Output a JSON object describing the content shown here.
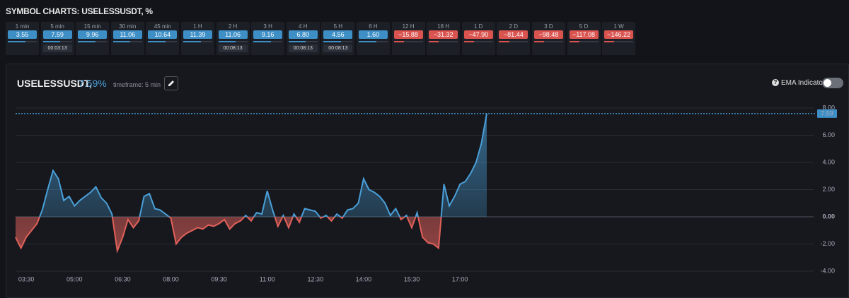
{
  "header": {
    "title": "SYMBOL CHARTS: USELESSUSDT, %"
  },
  "tiles": [
    {
      "label": "1 min",
      "value": "3.55",
      "tone": "up"
    },
    {
      "label": "5 min",
      "value": "7.59",
      "tone": "up",
      "timer": "00:03:13"
    },
    {
      "label": "15 min",
      "value": "9.96",
      "tone": "up"
    },
    {
      "label": "30 min",
      "value": "11.06",
      "tone": "up"
    },
    {
      "label": "45 min",
      "value": "10.64",
      "tone": "up"
    },
    {
      "label": "1 H",
      "value": "11.39",
      "tone": "up"
    },
    {
      "label": "2 H",
      "value": "11.06",
      "tone": "up",
      "timer": "00:08:13"
    },
    {
      "label": "3 H",
      "value": "9.16",
      "tone": "up"
    },
    {
      "label": "4 H",
      "value": "6.80",
      "tone": "up",
      "timer": "00:08:13"
    },
    {
      "label": "5 H",
      "value": "4.56",
      "tone": "up",
      "timer": "00:08:13"
    },
    {
      "label": "6 H",
      "value": "1.60",
      "tone": "up"
    },
    {
      "label": "12 H",
      "value": "−15.88",
      "tone": "down"
    },
    {
      "label": "18 H",
      "value": "−31.32",
      "tone": "down"
    },
    {
      "label": "1 D",
      "value": "−47.90",
      "tone": "down"
    },
    {
      "label": "2 D",
      "value": "−81.44",
      "tone": "down"
    },
    {
      "label": "3 D",
      "value": "−98.48",
      "tone": "down"
    },
    {
      "label": "5 D",
      "value": "−117.08",
      "tone": "down"
    },
    {
      "label": "1 W",
      "value": "−146.22",
      "tone": "down"
    }
  ],
  "panel": {
    "symbol": "USELESSUSDT,",
    "percent": "7.59%",
    "timeframe": "timeframe: 5 min",
    "ema_label": "EMA Indicator"
  },
  "chart_data": {
    "type": "area",
    "current_value": 7.59,
    "up_color": "#4a9fd8",
    "down_color": "#e0605a",
    "categories": [
      null,
      null,
      "03:30",
      null,
      null,
      null,
      null,
      null,
      null,
      null,
      null,
      "05:00",
      null,
      null,
      null,
      null,
      null,
      null,
      null,
      null,
      "06:30",
      null,
      null,
      null,
      null,
      null,
      null,
      null,
      null,
      "08:00",
      null,
      null,
      null,
      null,
      null,
      null,
      null,
      null,
      "09:30",
      null,
      null,
      null,
      null,
      null,
      null,
      null,
      null,
      "11:00",
      null,
      null,
      null,
      null,
      null,
      null,
      null,
      null,
      "12:30",
      null,
      null,
      null,
      null,
      null,
      null,
      null,
      null,
      "14:00",
      null,
      null,
      null,
      null,
      null,
      null,
      null,
      null,
      "15:30",
      null,
      null,
      null,
      null,
      null,
      null,
      null,
      null,
      "17:00",
      null,
      null,
      null,
      null,
      null
    ],
    "values": [
      -1.5,
      -2.3,
      -1.5,
      -1.0,
      -0.5,
      0.5,
      2.0,
      3.4,
      2.8,
      1.2,
      1.5,
      0.8,
      1.2,
      1.5,
      1.8,
      2.2,
      1.4,
      1.0,
      0.2,
      -2.5,
      -1.5,
      -0.2,
      -0.8,
      -0.3,
      1.5,
      1.7,
      0.6,
      0.5,
      0.2,
      -0.1,
      -2.0,
      -1.5,
      -1.2,
      -1.0,
      -0.8,
      -0.9,
      -0.6,
      -0.7,
      -0.5,
      -0.2,
      -0.9,
      -0.5,
      -0.3,
      0.1,
      -0.3,
      0.3,
      0.2,
      1.9,
      0.5,
      -0.7,
      0.1,
      -0.8,
      0.2,
      -0.4,
      0.6,
      0.5,
      0.4,
      -0.1,
      0.1,
      -0.3,
      0.2,
      -0.1,
      0.5,
      0.6,
      1.0,
      2.8,
      2.0,
      1.8,
      1.5,
      1.0,
      0.1,
      0.6,
      -0.2,
      0.1,
      -0.8,
      0.3,
      -1.5,
      -1.9,
      -2.0,
      -2.3,
      2.4,
      0.8,
      1.5,
      2.4,
      2.6,
      3.2,
      4.0,
      5.4,
      7.59
    ],
    "ylim": [
      -4,
      8
    ],
    "yticks": [
      {
        "value": -4,
        "label": "-4.00"
      },
      {
        "value": -2,
        "label": "-2.00"
      },
      {
        "value": 0,
        "label": "0.00"
      },
      {
        "value": 2,
        "label": "2.00"
      },
      {
        "value": 4,
        "label": "4.00"
      },
      {
        "value": 6,
        "label": "6.00"
      },
      {
        "value": 8,
        "label": "8.00"
      }
    ],
    "grid": true
  }
}
